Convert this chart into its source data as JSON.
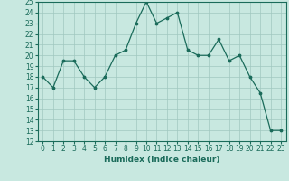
{
  "xlabel": "Humidex (Indice chaleur)",
  "data_x": [
    0,
    1,
    2,
    3,
    4,
    5,
    6,
    7,
    8,
    9,
    10,
    11,
    12,
    13,
    14,
    15,
    16,
    17,
    18,
    19,
    20,
    21,
    22,
    23
  ],
  "data_y": [
    18,
    17,
    19.5,
    19.5,
    18,
    17,
    18,
    20,
    20.5,
    23,
    25,
    23,
    23.5,
    24,
    20.5,
    20,
    20,
    21.5,
    19.5,
    20,
    18,
    16.5,
    13,
    13
  ],
  "line_color": "#1a6b5a",
  "bg_color": "#c8e8e0",
  "grid_color": "#a0c8c0",
  "ylim": [
    12,
    25
  ],
  "xlim": [
    -0.5,
    23.5
  ],
  "yticks": [
    12,
    13,
    14,
    15,
    16,
    17,
    18,
    19,
    20,
    21,
    22,
    23,
    24,
    25
  ],
  "xticks": [
    0,
    1,
    2,
    3,
    4,
    5,
    6,
    7,
    8,
    9,
    10,
    11,
    12,
    13,
    14,
    15,
    16,
    17,
    18,
    19,
    20,
    21,
    22,
    23
  ],
  "tick_fontsize": 5.5,
  "xlabel_fontsize": 6.5
}
